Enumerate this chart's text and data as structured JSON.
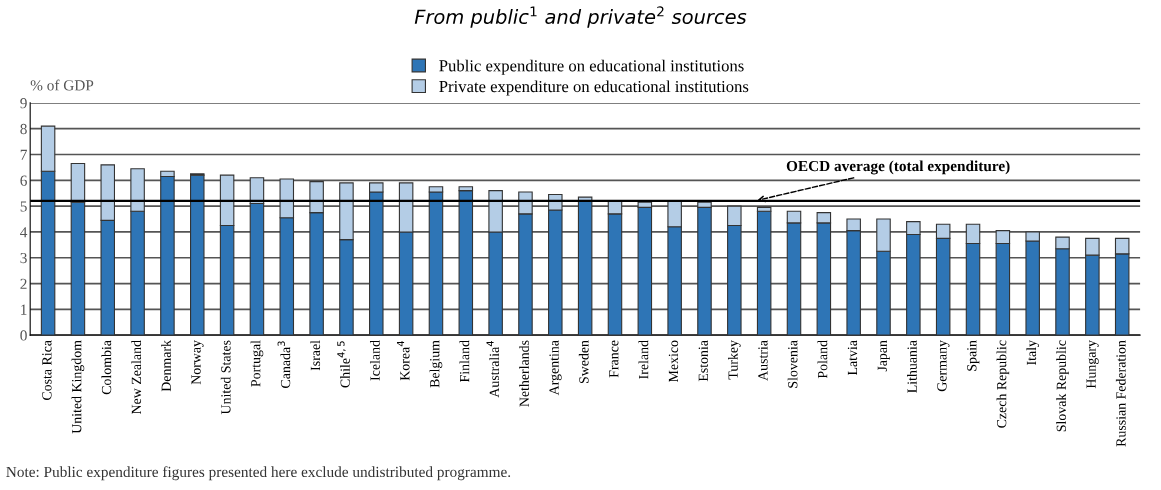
{
  "chart_data": {
    "type": "bar",
    "stacked": true,
    "title": "From public$^{1}$ and private$^{2}$ sources",
    "ylabel": "% of GDP",
    "categories": [
      "Costa Rica",
      "United Kingdom",
      "Colombia",
      "New Zealand",
      "Denmark",
      "Norway",
      "United States",
      "Portugal",
      "Canada$^{3}$",
      "Israel",
      "Chile$^{4,5}$",
      "Iceland",
      "Korea$^{4}$",
      "Belgium",
      "Finland",
      "Australia$^{4}$",
      "Netherlands",
      "Argentina",
      "Sweden",
      "France",
      "Ireland",
      "Mexico",
      "Estonia",
      "Turkey",
      "Austria",
      "Slovenia",
      "Poland",
      "Latvia",
      "Japan",
      "Lithuania",
      "Germany",
      "Spain",
      "Czech Republic",
      "Italy",
      "Slovak Republic",
      "Hungary",
      "Russian Federation"
    ],
    "series": [
      {
        "name": "Public expenditure on educational institutions",
        "color": "#2e75b6",
        "values": [
          6.35,
          5.15,
          4.45,
          4.8,
          6.15,
          6.2,
          4.25,
          5.1,
          4.55,
          4.75,
          3.7,
          5.55,
          4.0,
          5.55,
          5.6,
          4.0,
          4.7,
          4.85,
          5.2,
          4.7,
          4.95,
          4.2,
          4.95,
          4.25,
          4.8,
          4.35,
          4.35,
          4.05,
          3.25,
          3.9,
          3.75,
          3.55,
          3.55,
          3.65,
          3.35,
          3.1,
          3.15
        ]
      },
      {
        "name": "Private expenditure on educational institutions",
        "color": "#b4cde6",
        "values": [
          1.75,
          1.5,
          2.15,
          1.65,
          0.2,
          0.05,
          1.95,
          1.0,
          1.5,
          1.2,
          2.2,
          0.35,
          1.9,
          0.2,
          0.15,
          1.6,
          0.85,
          0.6,
          0.15,
          0.5,
          0.2,
          1.0,
          0.2,
          0.75,
          0.15,
          0.45,
          0.4,
          0.45,
          1.25,
          0.5,
          0.55,
          0.75,
          0.5,
          0.35,
          0.45,
          0.65,
          0.6
        ]
      }
    ],
    "ylim": [
      0,
      9
    ],
    "yticks": [
      0,
      1,
      2,
      3,
      4,
      5,
      6,
      7,
      8,
      9
    ],
    "grid": "y",
    "legend": "top",
    "ref_lines": [
      {
        "axis": "y",
        "value": 5.2,
        "label": "OECD average (total expenditure)",
        "color": "#000000"
      }
    ],
    "annotations": [
      "Note: Public expenditure figures presented here exclude undistributed programme."
    ]
  }
}
